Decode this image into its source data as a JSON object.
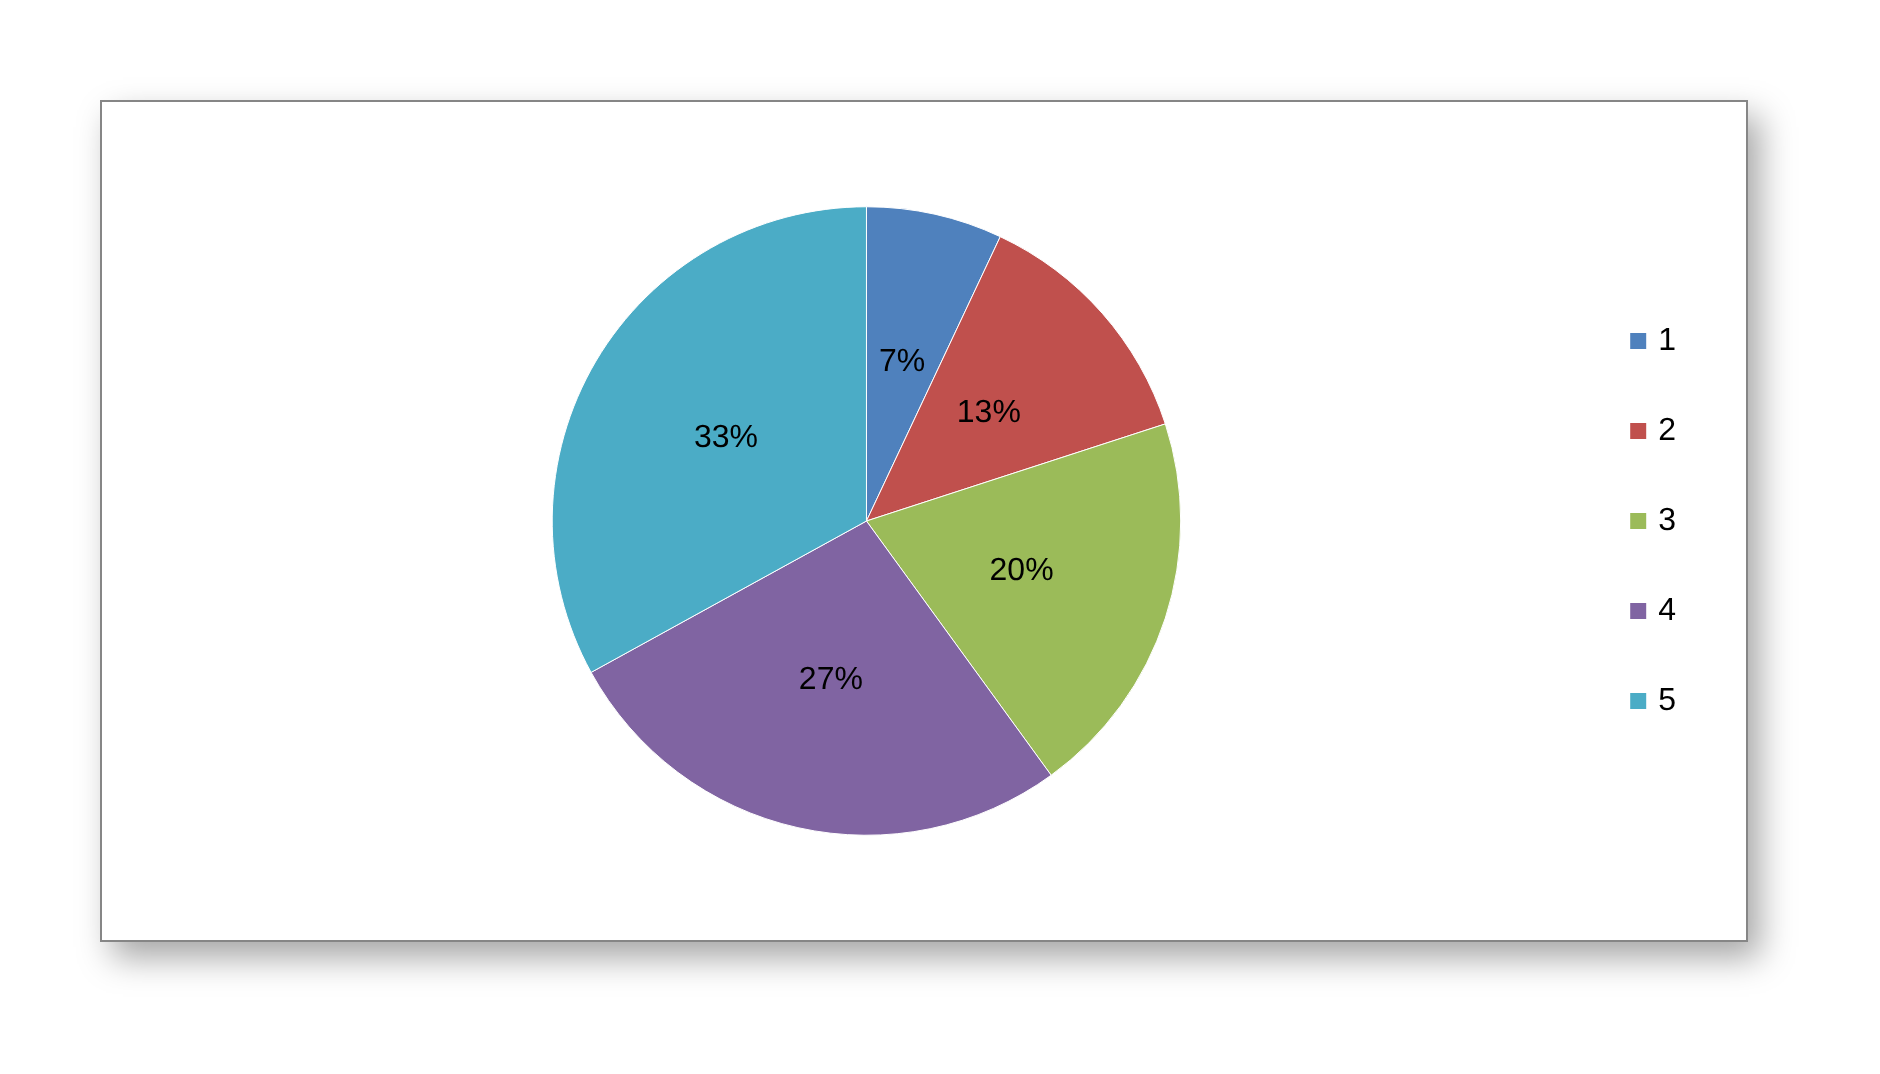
{
  "chart_data": {
    "type": "pie",
    "categories": [
      "1",
      "2",
      "3",
      "4",
      "5"
    ],
    "values": [
      7,
      13,
      20,
      27,
      33
    ],
    "colors": [
      "#4f81bd",
      "#c0504d",
      "#9bbb59",
      "#8064a2",
      "#4bacc6"
    ],
    "value_labels": [
      "7%",
      "13%",
      "20%",
      "27%",
      "33%"
    ],
    "legend": "right"
  }
}
